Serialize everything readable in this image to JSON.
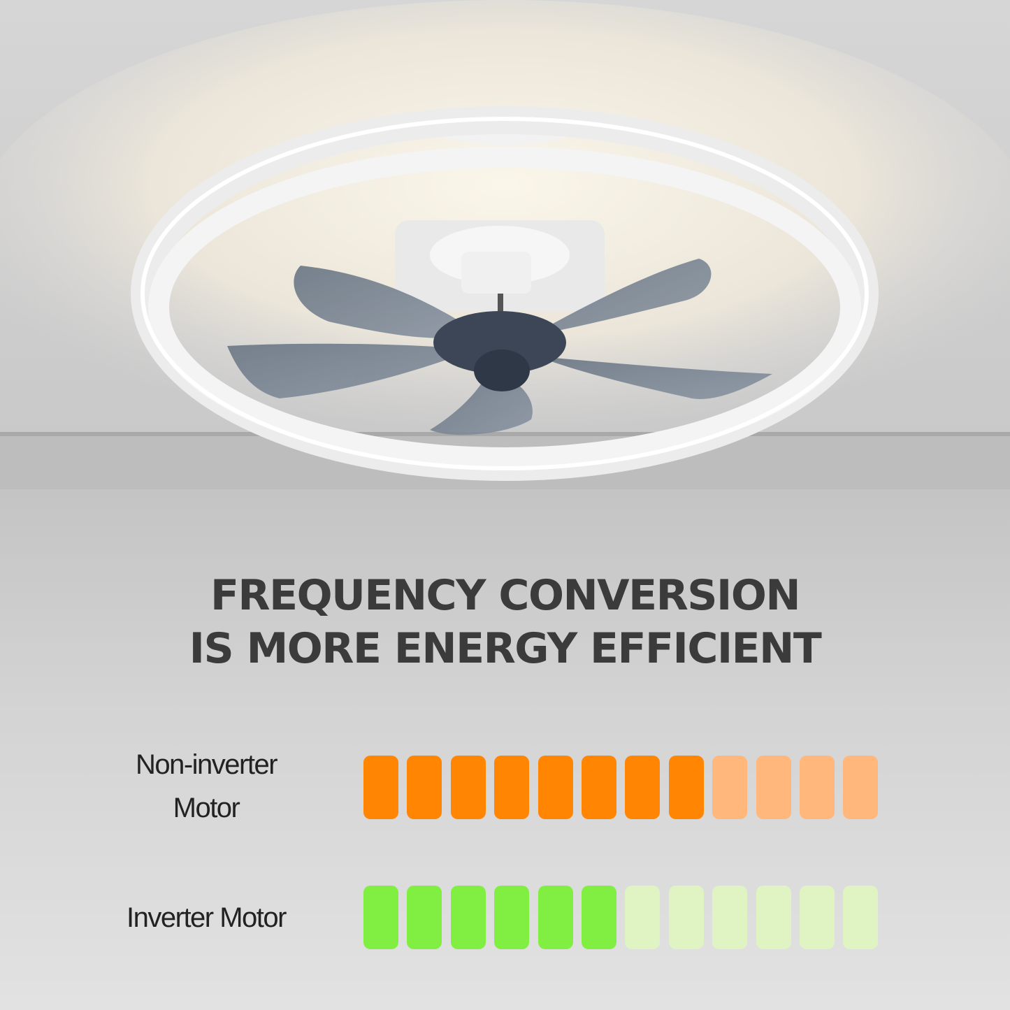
{
  "headline": {
    "line1": "FREQUENCY CONVERSION",
    "line2": "IS MORE ENERGY EFFICIENT"
  },
  "comparison": [
    {
      "label_line1": "Non-inverter",
      "label_line2": "Motor",
      "filled_segments": 8,
      "total_segments": 12,
      "filled_color": "#ff8503",
      "empty_color": "#ffb77c"
    },
    {
      "label_line1": "Inverter Motor",
      "label_line2": "",
      "filled_segments": 6,
      "total_segments": 12,
      "filled_color": "#80ef42",
      "empty_color": "#dff4c2"
    }
  ],
  "product": {
    "icon": "ceiling-fan-with-led-ring-image"
  }
}
